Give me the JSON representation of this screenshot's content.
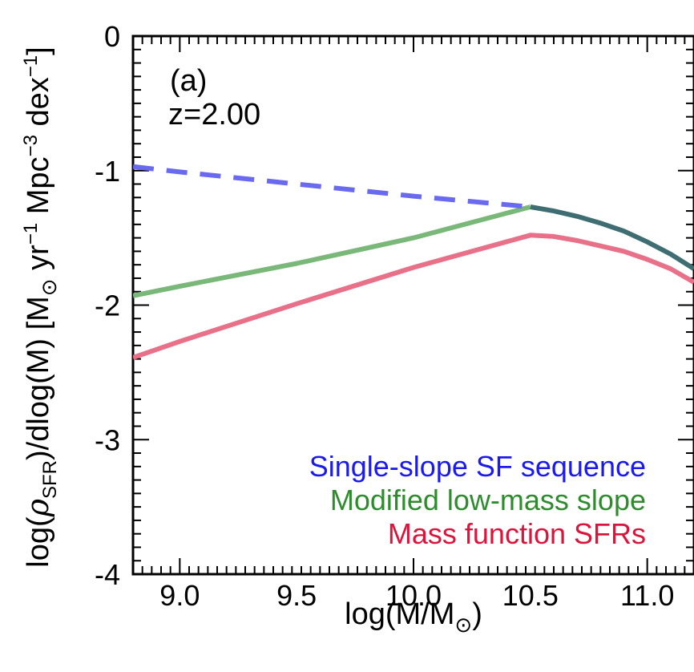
{
  "chart_data": {
    "type": "line",
    "panel_label": "(a)",
    "annotation": "z=2.00",
    "xlabel": "log(M/M",
    "xlabel_sub": "⊙",
    "xlabel_end": ")",
    "ylabel_parts": {
      "pre": "log(",
      "rho": "ρ",
      "rho_sub": "SFR",
      "mid": ")/dlog(M) [M",
      "msun_sub": "⊙",
      "yr": " yr",
      "yr_exp": "−1",
      "mpc": " Mpc",
      "mpc_exp": "−3",
      "dex": " dex",
      "dex_exp": "−1",
      "close": "]"
    },
    "xlim": [
      8.8,
      11.2
    ],
    "ylim": [
      -4,
      0
    ],
    "x_ticks": [
      "9.0",
      "9.5",
      "10.0",
      "10.5",
      "11.0"
    ],
    "y_ticks": [
      "0",
      "-1",
      "-2",
      "-3",
      "-4"
    ],
    "grid": false,
    "legend_placement": "bottom-right",
    "series": [
      {
        "name": "Single-slope SF sequence",
        "color": "#6a6af0",
        "legend_color": "#1a1aee",
        "style": "dashed-then-solid",
        "dash_until_x": 10.5,
        "points": [
          [
            8.8,
            -0.97
          ],
          [
            9.0,
            -1.01
          ],
          [
            9.5,
            -1.1
          ],
          [
            10.0,
            -1.19
          ],
          [
            10.5,
            -1.27
          ],
          [
            10.6,
            -1.3
          ],
          [
            10.7,
            -1.34
          ],
          [
            10.8,
            -1.39
          ],
          [
            10.9,
            -1.45
          ],
          [
            11.0,
            -1.53
          ],
          [
            11.1,
            -1.62
          ],
          [
            11.2,
            -1.73
          ]
        ]
      },
      {
        "name": "Modified low-mass slope",
        "color": "#7ab87a",
        "legend_color": "#2e8b2e",
        "style": "solid",
        "points": [
          [
            8.8,
            -1.93
          ],
          [
            9.0,
            -1.86
          ],
          [
            9.5,
            -1.69
          ],
          [
            10.0,
            -1.5
          ],
          [
            10.5,
            -1.27
          ]
        ]
      },
      {
        "name": "Mass function SFRs",
        "color": "#e87088",
        "legend_color": "#dc143c",
        "style": "solid",
        "points": [
          [
            8.8,
            -2.39
          ],
          [
            9.0,
            -2.27
          ],
          [
            9.5,
            -1.99
          ],
          [
            10.0,
            -1.72
          ],
          [
            10.5,
            -1.48
          ],
          [
            10.6,
            -1.49
          ],
          [
            10.7,
            -1.52
          ],
          [
            10.8,
            -1.56
          ],
          [
            10.9,
            -1.6
          ],
          [
            11.0,
            -1.66
          ],
          [
            11.1,
            -1.73
          ],
          [
            11.2,
            -1.83
          ]
        ]
      }
    ]
  }
}
